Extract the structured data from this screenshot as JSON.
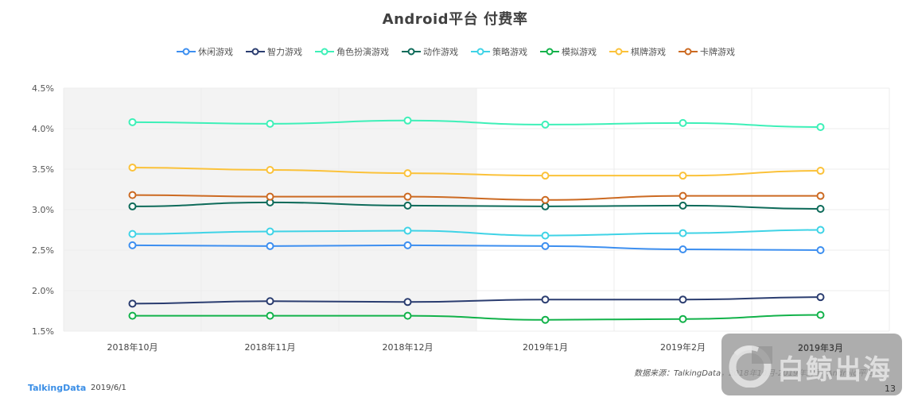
{
  "title": "Android平台  付费率",
  "legend": [
    {
      "label": "休闲游戏",
      "color": "#3d8ff0"
    },
    {
      "label": "智力游戏",
      "color": "#2b3d70"
    },
    {
      "label": "角色扮演游戏",
      "color": "#3ef0b8"
    },
    {
      "label": "动作游戏",
      "color": "#0e6b5a"
    },
    {
      "label": "策略游戏",
      "color": "#3fd3e6"
    },
    {
      "label": "模拟游戏",
      "color": "#12b24a"
    },
    {
      "label": "棋牌游戏",
      "color": "#fbc23a"
    },
    {
      "label": "卡牌游戏",
      "color": "#cc6a22"
    }
  ],
  "footer": {
    "brand": "TalkingData",
    "date": "2019/6/1",
    "source": "数据来源：TalkingData，2018年10月-2019年3月，Android平台",
    "page": "13",
    "watermark": "白鲸出海"
  },
  "chart_data": {
    "type": "line",
    "title": "Android平台  付费率",
    "xlabel": "",
    "ylabel": "",
    "categories": [
      "2018年10月",
      "2018年11月",
      "2018年12月",
      "2019年1月",
      "2019年2月",
      "2019年3月"
    ],
    "y_ticks": [
      "1.5%",
      "2.0%",
      "2.5%",
      "3.0%",
      "3.5%",
      "4.0%",
      "4.5%"
    ],
    "ylim": [
      1.5,
      4.5
    ],
    "unit": "%",
    "grid": true,
    "legend_position": "top",
    "shaded_region": {
      "from_category_index": 0,
      "to_category_index": 2
    },
    "series": [
      {
        "name": "休闲游戏",
        "color": "#3d8ff0",
        "values": [
          2.56,
          2.55,
          2.56,
          2.55,
          2.51,
          2.5
        ]
      },
      {
        "name": "智力游戏",
        "color": "#2b3d70",
        "values": [
          1.84,
          1.87,
          1.86,
          1.89,
          1.89,
          1.92
        ]
      },
      {
        "name": "角色扮演游戏",
        "color": "#3ef0b8",
        "values": [
          4.08,
          4.06,
          4.1,
          4.05,
          4.07,
          4.02
        ]
      },
      {
        "name": "动作游戏",
        "color": "#0e6b5a",
        "values": [
          3.04,
          3.09,
          3.05,
          3.04,
          3.05,
          3.01
        ]
      },
      {
        "name": "策略游戏",
        "color": "#3fd3e6",
        "values": [
          2.7,
          2.73,
          2.74,
          2.68,
          2.71,
          2.75
        ]
      },
      {
        "name": "模拟游戏",
        "color": "#12b24a",
        "values": [
          1.69,
          1.69,
          1.69,
          1.64,
          1.65,
          1.7
        ]
      },
      {
        "name": "棋牌游戏",
        "color": "#fbc23a",
        "values": [
          3.52,
          3.49,
          3.45,
          3.42,
          3.42,
          3.48
        ]
      },
      {
        "name": "卡牌游戏",
        "color": "#cc6a22",
        "values": [
          3.18,
          3.16,
          3.16,
          3.12,
          3.17,
          3.17
        ]
      }
    ]
  }
}
